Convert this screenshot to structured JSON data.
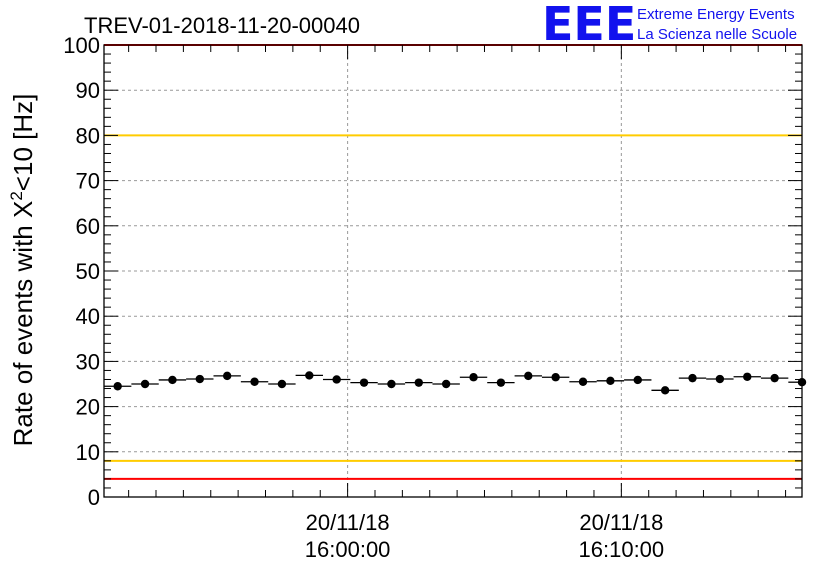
{
  "logo": {
    "mark": "EEE",
    "line1": "Extreme Energy Events",
    "line2": "La Scienza nelle Scuole",
    "color": "#1212ee"
  },
  "chart_data": {
    "type": "scatter",
    "title": "TREV-01-2018-11-20-00040",
    "ylabel_main": "Rate of events with X",
    "ylabel_sup": "2",
    "ylabel_tail": "<10 [Hz]",
    "ylim": [
      0,
      100
    ],
    "yticks": [
      0,
      10,
      20,
      30,
      40,
      50,
      60,
      70,
      80,
      90,
      100
    ],
    "x_unit": "minutes from 16:00:00",
    "xlim": [
      -8.9,
      16.6
    ],
    "xticks": [
      {
        "x": 0,
        "date": "20/11/18",
        "time": "16:00:00"
      },
      {
        "x": 10,
        "date": "20/11/18",
        "time": "16:10:00"
      }
    ],
    "grid": true,
    "bin_width_min": 1.0,
    "points_x": [
      -8.4,
      -7.4,
      -6.4,
      -5.4,
      -4.4,
      -3.4,
      -2.4,
      -1.4,
      -0.4,
      0.6,
      1.6,
      2.6,
      3.6,
      4.6,
      5.6,
      6.6,
      7.6,
      8.6,
      9.6,
      10.6,
      11.6,
      12.6,
      13.6,
      14.6,
      15.6,
      16.6
    ],
    "points_y": [
      24.5,
      25.0,
      25.9,
      26.1,
      26.8,
      25.5,
      25.0,
      26.9,
      26.0,
      25.3,
      25.0,
      25.3,
      25.0,
      26.5,
      25.3,
      26.8,
      26.5,
      25.5,
      25.7,
      25.9,
      23.6,
      26.3,
      26.1,
      26.6,
      26.3,
      25.4
    ],
    "reference_lines": [
      {
        "name": "upper-red-limit",
        "y": 100,
        "color": "#ff0000"
      },
      {
        "name": "upper-yellow-limit",
        "y": 80,
        "color": "#ffcc00"
      },
      {
        "name": "lower-yellow-limit",
        "y": 8,
        "color": "#ffcc00"
      },
      {
        "name": "lower-red-limit",
        "y": 4,
        "color": "#ff0000"
      }
    ],
    "marker_color": "#000000"
  }
}
